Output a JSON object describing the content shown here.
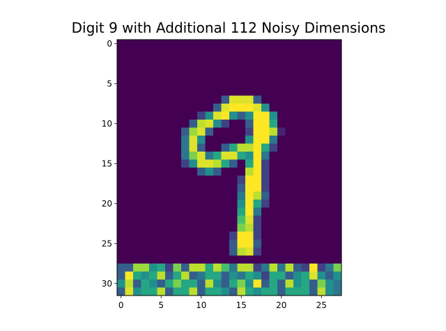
{
  "chart_data": {
    "type": "heatmap",
    "title": "Digit 9 with Additional 112 Noisy Dimensions",
    "xlabel": "",
    "ylabel": "",
    "colormap": "viridis",
    "value_range": [
      0,
      1
    ],
    "xlim": [
      -0.5,
      27.5
    ],
    "ylim": [
      31.5,
      -0.5
    ],
    "x_ticks": [
      0,
      5,
      10,
      15,
      20,
      25
    ],
    "y_ticks": [
      0,
      5,
      10,
      15,
      20,
      25,
      30
    ],
    "grid": false,
    "matrix": [
      [
        0,
        0,
        0,
        0,
        0,
        0,
        0,
        0,
        0,
        0,
        0,
        0,
        0,
        0,
        0,
        0,
        0,
        0,
        0,
        0,
        0,
        0,
        0,
        0,
        0,
        0,
        0,
        0
      ],
      [
        0,
        0,
        0,
        0,
        0,
        0,
        0,
        0,
        0,
        0,
        0,
        0,
        0,
        0,
        0,
        0,
        0,
        0,
        0,
        0,
        0,
        0,
        0,
        0,
        0,
        0,
        0,
        0
      ],
      [
        0,
        0,
        0,
        0,
        0,
        0,
        0,
        0,
        0,
        0,
        0,
        0,
        0,
        0,
        0,
        0,
        0,
        0,
        0,
        0,
        0,
        0,
        0,
        0,
        0,
        0,
        0,
        0
      ],
      [
        0,
        0,
        0,
        0,
        0,
        0,
        0,
        0,
        0,
        0,
        0,
        0,
        0,
        0,
        0,
        0,
        0,
        0,
        0,
        0,
        0,
        0,
        0,
        0,
        0,
        0,
        0,
        0
      ],
      [
        0,
        0,
        0,
        0,
        0,
        0,
        0,
        0,
        0,
        0,
        0,
        0,
        0,
        0,
        0,
        0,
        0,
        0,
        0,
        0,
        0,
        0,
        0,
        0,
        0,
        0,
        0,
        0
      ],
      [
        0,
        0,
        0,
        0,
        0,
        0,
        0,
        0,
        0,
        0,
        0,
        0,
        0,
        0,
        0,
        0,
        0,
        0,
        0,
        0,
        0,
        0,
        0,
        0,
        0,
        0,
        0,
        0
      ],
      [
        0,
        0,
        0,
        0,
        0,
        0,
        0,
        0,
        0,
        0,
        0,
        0,
        0,
        0,
        0,
        0,
        0,
        0,
        0,
        0,
        0,
        0,
        0,
        0,
        0,
        0,
        0,
        0
      ],
      [
        0,
        0,
        0,
        0,
        0,
        0,
        0,
        0,
        0,
        0,
        0,
        0,
        0,
        0.3,
        0.95,
        0.95,
        0.95,
        0.3,
        0,
        0,
        0,
        0,
        0,
        0,
        0,
        0,
        0,
        0
      ],
      [
        0,
        0,
        0,
        0,
        0,
        0,
        0,
        0,
        0,
        0,
        0,
        0,
        0.3,
        0.95,
        1,
        1,
        1,
        0.95,
        0.5,
        0,
        0,
        0,
        0,
        0,
        0,
        0,
        0,
        0
      ],
      [
        0,
        0,
        0,
        0,
        0,
        0,
        0,
        0,
        0,
        0,
        0.2,
        0.5,
        0.95,
        1,
        0.5,
        0.3,
        0.5,
        1,
        1,
        0.5,
        0,
        0,
        0,
        0,
        0,
        0,
        0,
        0
      ],
      [
        0,
        0,
        0,
        0,
        0,
        0,
        0,
        0,
        0,
        0.3,
        0.9,
        0.95,
        0.5,
        0.2,
        0,
        0,
        0.3,
        1,
        1,
        0.6,
        0,
        0,
        0,
        0,
        0,
        0,
        0,
        0
      ],
      [
        0,
        0,
        0,
        0,
        0,
        0,
        0,
        0,
        0.3,
        0.85,
        0.95,
        0.3,
        0,
        0,
        0,
        0,
        0.2,
        1,
        1,
        0.9,
        0.1,
        0,
        0,
        0,
        0,
        0,
        0,
        0
      ],
      [
        0,
        0,
        0,
        0,
        0,
        0,
        0,
        0,
        0.4,
        0.95,
        0.5,
        0,
        0,
        0,
        0,
        0,
        0.5,
        1,
        1,
        0.4,
        0,
        0,
        0,
        0,
        0,
        0,
        0,
        0
      ],
      [
        0,
        0,
        0,
        0,
        0,
        0,
        0,
        0,
        0.4,
        0.95,
        0.3,
        0,
        0,
        0.3,
        0.6,
        0.9,
        0.9,
        1,
        0.6,
        0.2,
        0,
        0,
        0,
        0,
        0,
        0,
        0,
        0
      ],
      [
        0,
        0,
        0,
        0,
        0,
        0,
        0,
        0,
        0.4,
        0.8,
        0.95,
        0.4,
        0.6,
        0.95,
        0.95,
        0.6,
        0.5,
        1,
        0.4,
        0,
        0,
        0,
        0,
        0,
        0,
        0,
        0,
        0
      ],
      [
        0,
        0,
        0,
        0,
        0,
        0,
        0,
        0,
        0.2,
        0.5,
        0.95,
        0.95,
        0.9,
        0.6,
        0.3,
        0,
        0.6,
        1,
        0.2,
        0,
        0,
        0,
        0,
        0,
        0,
        0,
        0,
        0
      ],
      [
        0,
        0,
        0,
        0,
        0,
        0,
        0,
        0,
        0,
        0,
        0.3,
        0.5,
        0.3,
        0,
        0,
        0,
        0.9,
        1,
        0.2,
        0,
        0,
        0,
        0,
        0,
        0,
        0,
        0,
        0
      ],
      [
        0,
        0,
        0,
        0,
        0,
        0,
        0,
        0,
        0,
        0,
        0,
        0,
        0,
        0,
        0,
        0.2,
        1,
        1,
        0.2,
        0,
        0,
        0,
        0,
        0,
        0,
        0,
        0,
        0
      ],
      [
        0,
        0,
        0,
        0,
        0,
        0,
        0,
        0,
        0,
        0,
        0,
        0,
        0,
        0,
        0,
        0.3,
        1,
        1,
        0.2,
        0,
        0,
        0,
        0,
        0,
        0,
        0,
        0,
        0
      ],
      [
        0,
        0,
        0,
        0,
        0,
        0,
        0,
        0,
        0,
        0,
        0,
        0,
        0,
        0,
        0,
        0.4,
        1,
        0.9,
        0.3,
        0,
        0,
        0,
        0,
        0,
        0,
        0,
        0,
        0
      ],
      [
        0,
        0,
        0,
        0,
        0,
        0,
        0,
        0,
        0,
        0,
        0,
        0,
        0,
        0,
        0,
        0.5,
        1,
        0.6,
        0.2,
        0,
        0,
        0,
        0,
        0,
        0,
        0,
        0,
        0
      ],
      [
        0,
        0,
        0,
        0,
        0,
        0,
        0,
        0,
        0,
        0,
        0,
        0,
        0,
        0,
        0,
        0.6,
        1,
        0.4,
        0,
        0,
        0,
        0,
        0,
        0,
        0,
        0,
        0,
        0
      ],
      [
        0,
        0,
        0,
        0,
        0,
        0,
        0,
        0,
        0,
        0,
        0,
        0,
        0,
        0,
        0,
        0.7,
        0.95,
        0.2,
        0,
        0,
        0,
        0,
        0,
        0,
        0,
        0,
        0,
        0
      ],
      [
        0,
        0,
        0,
        0,
        0,
        0,
        0,
        0,
        0,
        0,
        0,
        0,
        0,
        0,
        0,
        0.8,
        0.9,
        0.2,
        0,
        0,
        0,
        0,
        0,
        0,
        0,
        0,
        0,
        0
      ],
      [
        0,
        0,
        0,
        0,
        0,
        0,
        0,
        0,
        0,
        0,
        0,
        0,
        0,
        0,
        0.2,
        1,
        1,
        0.2,
        0,
        0,
        0,
        0,
        0,
        0,
        0,
        0,
        0,
        0
      ],
      [
        0,
        0,
        0,
        0,
        0,
        0,
        0,
        0,
        0,
        0,
        0,
        0,
        0,
        0,
        0.3,
        1,
        1,
        0.3,
        0,
        0,
        0,
        0,
        0,
        0,
        0,
        0,
        0,
        0
      ],
      [
        0,
        0,
        0,
        0,
        0,
        0,
        0,
        0,
        0,
        0,
        0,
        0,
        0,
        0,
        0.3,
        0.9,
        0.95,
        0.2,
        0,
        0,
        0,
        0,
        0,
        0,
        0,
        0,
        0,
        0
      ],
      [
        0,
        0,
        0,
        0,
        0,
        0,
        0,
        0,
        0,
        0,
        0,
        0,
        0,
        0,
        0,
        0,
        0,
        0,
        0,
        0,
        0,
        0,
        0,
        0,
        0,
        0,
        0,
        0
      ],
      [
        0.3,
        0.3,
        0.85,
        0.85,
        0.5,
        0.6,
        0.2,
        0.8,
        0.3,
        0.9,
        0.9,
        0.6,
        0.9,
        0.7,
        0.4,
        0.9,
        0.9,
        0.2,
        0.4,
        0.9,
        0.4,
        0.9,
        0.3,
        0.2,
        1,
        0.2,
        0.4,
        0.8
      ],
      [
        0.3,
        1,
        0.6,
        0.5,
        0.6,
        0.9,
        0.3,
        0.6,
        0.9,
        0.3,
        0.4,
        0.6,
        0.6,
        0.3,
        0.5,
        0.4,
        0.6,
        0.5,
        0.2,
        0.6,
        0.6,
        0.3,
        0.5,
        0.6,
        0.95,
        0.5,
        0.3,
        0.5
      ],
      [
        0.5,
        0.9,
        0.3,
        0.6,
        0.5,
        0.3,
        0.6,
        0.8,
        0.6,
        0.6,
        0.3,
        0.9,
        0.5,
        0.3,
        0.6,
        0.8,
        0.5,
        1,
        0.3,
        0.6,
        0.3,
        0.9,
        0.5,
        0.6,
        0.3,
        0.8,
        0.5,
        0.4
      ],
      [
        0.3,
        0.95,
        0.5,
        0.6,
        0.6,
        0.9,
        0.3,
        0.6,
        0.6,
        0.9,
        0.3,
        0.6,
        0.6,
        0.5,
        0.3,
        0.9,
        0.6,
        0.5,
        0.6,
        0.6,
        0.3,
        0.6,
        0.6,
        0.6,
        0.3,
        0.9,
        0.5,
        0.4
      ]
    ]
  }
}
